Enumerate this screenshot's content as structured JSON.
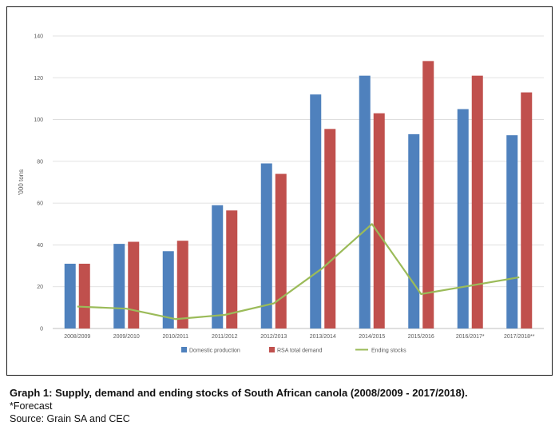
{
  "chart_data": {
    "type": "bar",
    "categories": [
      "2008/2009",
      "2009/2010",
      "2010/2011",
      "2011/2012",
      "2012/2013",
      "2013/2014",
      "2014/2015",
      "2015/2016",
      "2016/2017*",
      "2017/2018**"
    ],
    "series": [
      {
        "name": "Domestic production",
        "kind": "bar",
        "color": "#4f81bd",
        "values": [
          31,
          40.5,
          37,
          59,
          79,
          112,
          121,
          93,
          105,
          92.5
        ]
      },
      {
        "name": "RSA total demand",
        "kind": "bar",
        "color": "#c0504d",
        "values": [
          31,
          41.5,
          42,
          56.5,
          74,
          95.5,
          103,
          128,
          121,
          113
        ]
      },
      {
        "name": "Ending stocks",
        "kind": "line",
        "color": "#9bbb59",
        "values": [
          10.5,
          9.5,
          4.5,
          6.5,
          12,
          29,
          50,
          16.5,
          20.5,
          24.5
        ]
      }
    ],
    "ylabel": "'000 tons",
    "xlabel": "",
    "ylim": [
      0,
      140
    ],
    "yticks": [
      0,
      20,
      40,
      60,
      80,
      100,
      120,
      140
    ],
    "grid": true,
    "legend": "bottom"
  },
  "caption": {
    "title": "Graph 1: Supply, demand and ending stocks of South African canola (2008/2009 - 2017/2018).",
    "note": "*Forecast",
    "source": "Source: Grain SA and CEC"
  }
}
